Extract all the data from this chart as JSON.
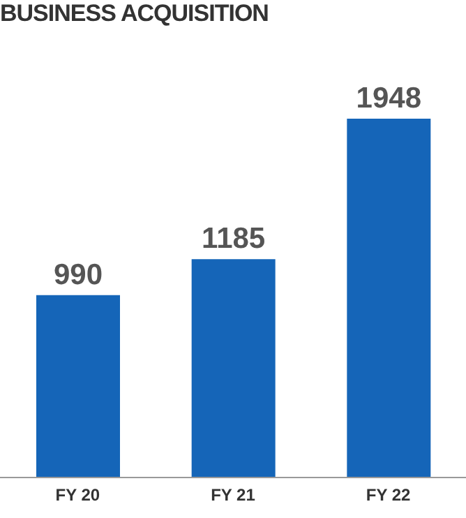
{
  "chart_data": {
    "type": "bar",
    "title": "BUSINESS ACQUISITION",
    "categories": [
      "FY 20",
      "FY 21",
      "FY 22"
    ],
    "values": [
      990,
      1185,
      1948
    ],
    "color": "#1565b8",
    "data_labels": true
  }
}
